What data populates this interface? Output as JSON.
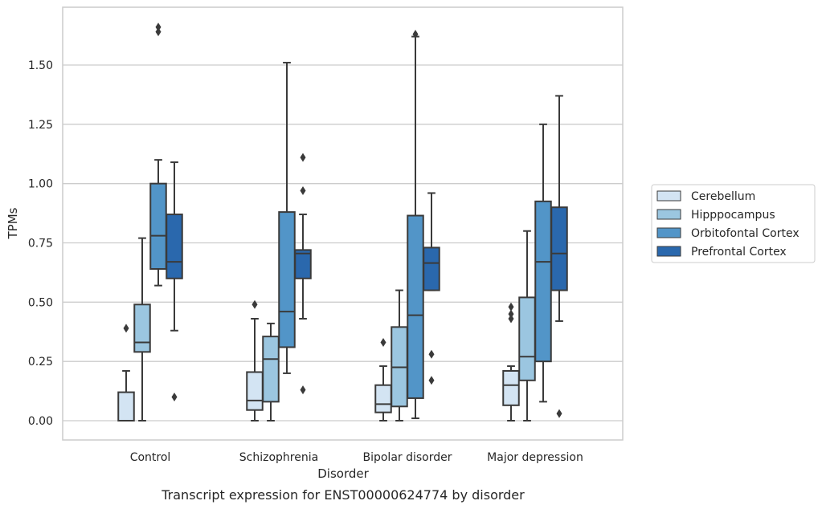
{
  "chart_data": {
    "type": "box",
    "caption": "Transcript expression for ENST00000624774 by disorder",
    "xlabel": "Disorder",
    "ylabel": "TPMs",
    "ylim": [
      -0.08,
      1.75
    ],
    "yticks": [
      0.0,
      0.25,
      0.5,
      0.75,
      1.0,
      1.25,
      1.5
    ],
    "ytick_labels": [
      "0.00",
      "0.25",
      "0.50",
      "0.75",
      "1.00",
      "1.25",
      "1.50"
    ],
    "grid": "horizontal",
    "legend_position": "right",
    "categories": [
      "Control",
      "Schizophrenia",
      "Bipolar disorder",
      "Major depression"
    ],
    "series": [
      {
        "name": "Cerebellum",
        "color": "#d3e4f3",
        "boxes": [
          {
            "whislo": 0.0,
            "q1": 0.0,
            "med": 0.0,
            "q3": 0.12,
            "whishi": 0.21,
            "fliers": [
              0.39
            ]
          },
          {
            "whislo": 0.0,
            "q1": 0.045,
            "med": 0.085,
            "q3": 0.205,
            "whishi": 0.43,
            "fliers": [
              0.49
            ]
          },
          {
            "whislo": 0.0,
            "q1": 0.035,
            "med": 0.07,
            "q3": 0.15,
            "whishi": 0.23,
            "fliers": [
              0.33
            ]
          },
          {
            "whislo": 0.0,
            "q1": 0.065,
            "med": 0.15,
            "q3": 0.21,
            "whishi": 0.23,
            "fliers": [
              0.43,
              0.45,
              0.48
            ]
          }
        ]
      },
      {
        "name": "Hipppocampus",
        "color": "#9bc6e0",
        "boxes": [
          {
            "whislo": 0.0,
            "q1": 0.29,
            "med": 0.33,
            "q3": 0.49,
            "whishi": 0.77,
            "fliers": []
          },
          {
            "whislo": 0.0,
            "q1": 0.08,
            "med": 0.26,
            "q3": 0.355,
            "whishi": 0.41,
            "fliers": []
          },
          {
            "whislo": 0.0,
            "q1": 0.06,
            "med": 0.225,
            "q3": 0.395,
            "whishi": 0.55,
            "fliers": []
          },
          {
            "whislo": 0.0,
            "q1": 0.17,
            "med": 0.27,
            "q3": 0.52,
            "whishi": 0.8,
            "fliers": []
          }
        ]
      },
      {
        "name": "Orbitofontal Cortex",
        "color": "#5295c8",
        "boxes": [
          {
            "whislo": 0.57,
            "q1": 0.64,
            "med": 0.78,
            "q3": 1.0,
            "whishi": 1.1,
            "fliers": [
              1.64,
              1.66
            ]
          },
          {
            "whislo": 0.2,
            "q1": 0.31,
            "med": 0.46,
            "q3": 0.88,
            "whishi": 1.51,
            "fliers": []
          },
          {
            "whislo": 0.01,
            "q1": 0.095,
            "med": 0.445,
            "q3": 0.865,
            "whishi": 1.62,
            "fliers": [
              1.63
            ]
          },
          {
            "whislo": 0.08,
            "q1": 0.25,
            "med": 0.67,
            "q3": 0.925,
            "whishi": 1.25,
            "fliers": []
          }
        ]
      },
      {
        "name": "Prefrontal Cortex",
        "color": "#2a68ad",
        "boxes": [
          {
            "whislo": 0.38,
            "q1": 0.6,
            "med": 0.67,
            "q3": 0.87,
            "whishi": 1.09,
            "fliers": [
              0.1
            ]
          },
          {
            "whislo": 0.43,
            "q1": 0.6,
            "med": 0.705,
            "q3": 0.72,
            "whishi": 0.87,
            "fliers": [
              1.11,
              0.97,
              0.13
            ]
          },
          {
            "whislo": 0.55,
            "q1": 0.55,
            "med": 0.665,
            "q3": 0.73,
            "whishi": 0.96,
            "fliers": [
              0.28,
              0.17
            ]
          },
          {
            "whislo": 0.42,
            "q1": 0.55,
            "med": 0.705,
            "q3": 0.9,
            "whishi": 1.37,
            "fliers": [
              0.03
            ]
          }
        ]
      }
    ]
  }
}
